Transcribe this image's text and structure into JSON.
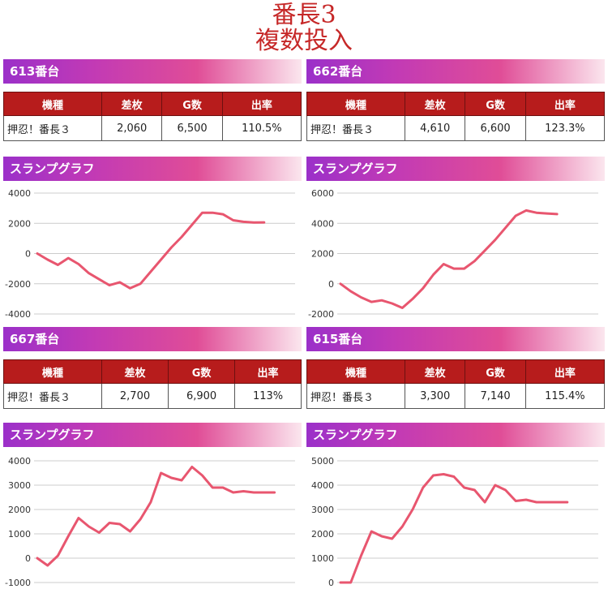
{
  "page": {
    "title_line1": "番長3",
    "title_line2": "複数投入"
  },
  "panels": [
    {
      "machine_label": "613番台",
      "headers": [
        "機種",
        "差枚",
        "G数",
        "出率"
      ],
      "row": [
        "押忍！番長３",
        "2,060",
        "6,500",
        "110.5%"
      ],
      "graph_label": "スランプグラフ"
    },
    {
      "machine_label": "662番台",
      "headers": [
        "機種",
        "差枚",
        "G数",
        "出率"
      ],
      "row": [
        "押忍！番長３",
        "4,610",
        "6,600",
        "123.3%"
      ],
      "graph_label": "スランプグラフ"
    },
    {
      "machine_label": "667番台",
      "headers": [
        "機種",
        "差枚",
        "G数",
        "出率"
      ],
      "row": [
        "押忍！番長３",
        "2,700",
        "6,900",
        "113%"
      ],
      "graph_label": "スランプグラフ"
    },
    {
      "machine_label": "615番台",
      "headers": [
        "機種",
        "差枚",
        "G数",
        "出率"
      ],
      "row": [
        "押忍！番長３",
        "3,300",
        "7,140",
        "115.4%"
      ],
      "graph_label": "スランプグラフ"
    }
  ],
  "chart_data": [
    {
      "type": "line",
      "line_color": "#e8566f",
      "yticks": [
        "4000",
        "2000",
        "0",
        "-2000",
        "-4000"
      ],
      "ylim": [
        -4000,
        4000
      ],
      "x": [
        0,
        4,
        8,
        12,
        16,
        20,
        24,
        28,
        32,
        36,
        40,
        44,
        48,
        52,
        56,
        60,
        64,
        68,
        72,
        76,
        80,
        84,
        88
      ],
      "values": [
        0,
        -400,
        -750,
        -300,
        -700,
        -1300,
        -1700,
        -2100,
        -1900,
        -2300,
        -2000,
        -1200,
        -400,
        400,
        1100,
        1900,
        2700,
        2700,
        2600,
        2200,
        2100,
        2050,
        2060
      ],
      "x_max": 100
    },
    {
      "type": "line",
      "line_color": "#e8566f",
      "yticks": [
        "6000",
        "4000",
        "2000",
        "0",
        "-2000"
      ],
      "ylim": [
        -2000,
        6000
      ],
      "x": [
        0,
        4,
        8,
        12,
        16,
        20,
        24,
        28,
        32,
        36,
        40,
        44,
        48,
        52,
        56,
        60,
        64,
        68,
        72,
        76,
        80,
        84
      ],
      "values": [
        0,
        -500,
        -900,
        -1200,
        -1100,
        -1300,
        -1600,
        -1000,
        -300,
        600,
        1300,
        1000,
        1000,
        1500,
        2200,
        2900,
        3700,
        4500,
        4850,
        4700,
        4650,
        4610
      ],
      "x_max": 100
    },
    {
      "type": "line",
      "line_color": "#e8566f",
      "yticks": [
        "4000",
        "3000",
        "2000",
        "1000",
        "0",
        "-1000"
      ],
      "ylim": [
        -1000,
        4000
      ],
      "x": [
        0,
        4,
        8,
        12,
        16,
        20,
        24,
        28,
        32,
        36,
        40,
        44,
        48,
        52,
        56,
        60,
        64,
        68,
        72,
        76,
        80,
        84,
        88,
        92
      ],
      "values": [
        0,
        -300,
        100,
        900,
        1650,
        1300,
        1050,
        1450,
        1400,
        1100,
        1600,
        2300,
        3500,
        3300,
        3200,
        3750,
        3400,
        2900,
        2900,
        2700,
        2750,
        2700,
        2700,
        2700
      ],
      "x_max": 100
    },
    {
      "type": "line",
      "line_color": "#e8566f",
      "yticks": [
        "5000",
        "4000",
        "3000",
        "2000",
        "1000",
        "0"
      ],
      "ylim": [
        0,
        5000
      ],
      "x": [
        0,
        4,
        8,
        12,
        16,
        20,
        24,
        28,
        32,
        36,
        40,
        44,
        48,
        52,
        56,
        60,
        64,
        68,
        72,
        76,
        80,
        84,
        88
      ],
      "values": [
        0,
        0,
        1100,
        2100,
        1900,
        1800,
        2300,
        3000,
        3900,
        4400,
        4450,
        4350,
        3900,
        3800,
        3300,
        4000,
        3800,
        3350,
        3400,
        3300,
        3300,
        3300,
        3300
      ],
      "x_max": 100
    }
  ]
}
